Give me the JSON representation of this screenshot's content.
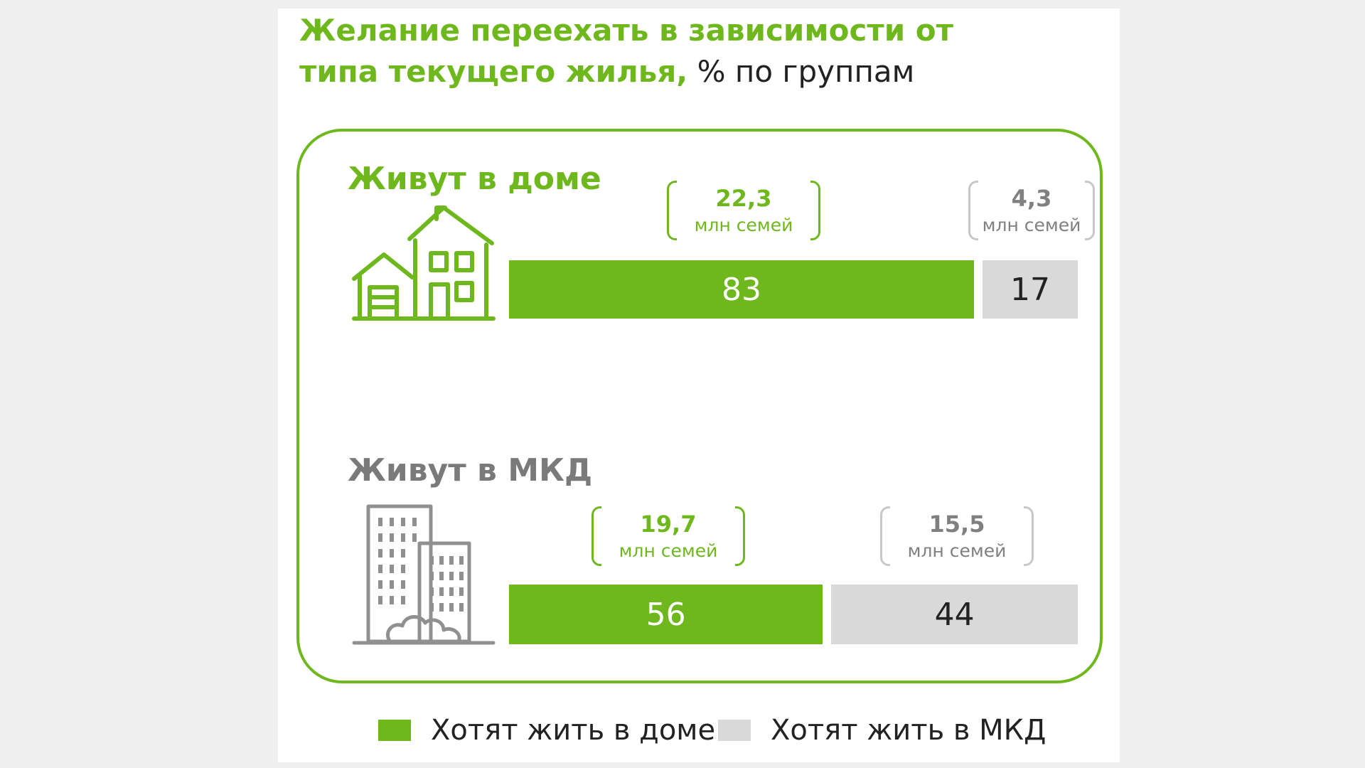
{
  "title": {
    "main": "Желание переехать в зависимости от типа текущего жилья,",
    "suffix": " % по группам"
  },
  "colors": {
    "green": "#6eb81e",
    "gray": "#d9d9d9"
  },
  "groups": [
    {
      "label": "Живут в доме",
      "icon": "house-icon",
      "want_house_families": "22,3",
      "want_mkd_families": "4,3",
      "families_unit": "млн семей",
      "want_house_pct_label": "83",
      "want_mkd_pct_label": "17"
    },
    {
      "label": "Живут в МКД",
      "icon": "apartment-buildings-icon",
      "want_house_families": "19,7",
      "want_mkd_families": "15,5",
      "families_unit": "млн семей",
      "want_house_pct_label": "56",
      "want_mkd_pct_label": "44"
    }
  ],
  "legend": {
    "house": "Хотят жить в доме",
    "mkd": "Хотят жить в МКД"
  },
  "chart_data": {
    "type": "bar",
    "stacked": true,
    "orientation": "horizontal",
    "title": "Желание переехать в зависимости от типа текущего жилья, % по группам",
    "categories": [
      "Живут в доме",
      "Живут в МКД"
    ],
    "series": [
      {
        "name": "Хотят жить в доме",
        "values": [
          83,
          56
        ],
        "families_mln": [
          22.3,
          19.7
        ],
        "color": "#6eb81e"
      },
      {
        "name": "Хотят жить в МКД",
        "values": [
          17,
          44
        ],
        "families_mln": [
          4.3,
          15.5
        ],
        "color": "#d9d9d9"
      }
    ],
    "xlim": [
      0,
      100
    ],
    "grid": false,
    "legend_position": "bottom"
  }
}
